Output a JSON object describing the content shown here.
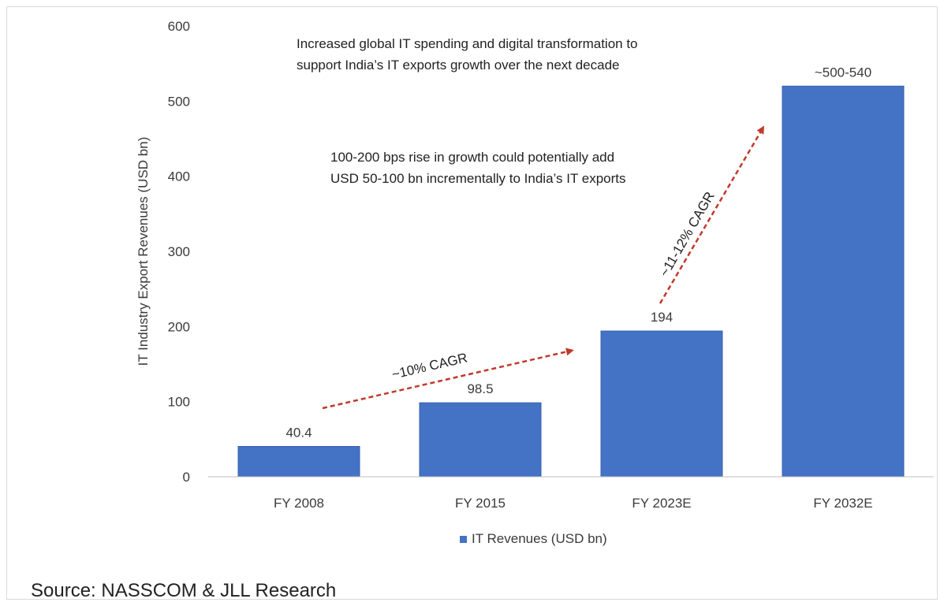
{
  "chart_data": {
    "type": "bar",
    "categories": [
      "FY 2008",
      "FY 2015",
      "FY 2023E",
      "FY 2032E"
    ],
    "series": [
      {
        "name": "IT Revenues (USD bn)",
        "values": [
          40.4,
          98.5,
          194,
          520
        ]
      }
    ],
    "data_labels": [
      "40.4",
      "98.5",
      "194",
      "~500-540"
    ],
    "ylabel": "IT Industry Export Revenues (USD bn)",
    "xlabel": "",
    "ylim": [
      0,
      600
    ],
    "yticks": [
      0,
      100,
      200,
      300,
      400,
      500,
      600
    ],
    "grid": false,
    "legend": "bottom",
    "bar_color": "#4472c4",
    "arrow_color": "#c0392b",
    "annotations": {
      "top_text": [
        "Increased global IT spending and digital transformation to",
        "support India’s IT exports growth over the next decade"
      ],
      "mid_text": [
        "100-200 bps rise in growth could potentially add",
        "USD 50-100 bn incrementally to India’s IT exports"
      ],
      "cagr_1": "~10% CAGR",
      "cagr_2": "~11-12% CAGR"
    }
  },
  "source": "Source: NASSCOM & JLL Research"
}
